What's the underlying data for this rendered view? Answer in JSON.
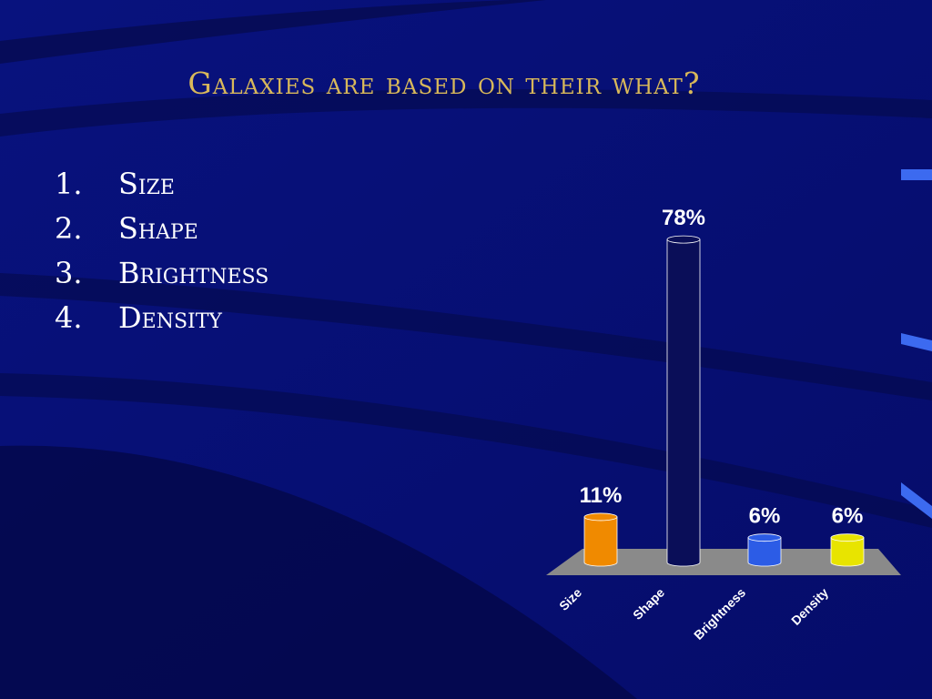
{
  "slide": {
    "title": "Galaxies are based on their what?",
    "options": [
      {
        "number": "1.",
        "text": "Size"
      },
      {
        "number": "2.",
        "text": "Shape"
      },
      {
        "number": "3.",
        "text": "Brightness"
      },
      {
        "number": "4.",
        "text": "Density"
      }
    ]
  },
  "chart_data": {
    "type": "bar",
    "categories": [
      "Size",
      "Shape",
      "Brightness",
      "Density"
    ],
    "values": [
      11,
      78,
      6,
      6
    ],
    "value_labels": [
      "11%",
      "78%",
      "6%",
      "6%"
    ],
    "colors": [
      "#f08a00",
      "#0a0e58",
      "#2c5ce6",
      "#e8e400"
    ]
  }
}
